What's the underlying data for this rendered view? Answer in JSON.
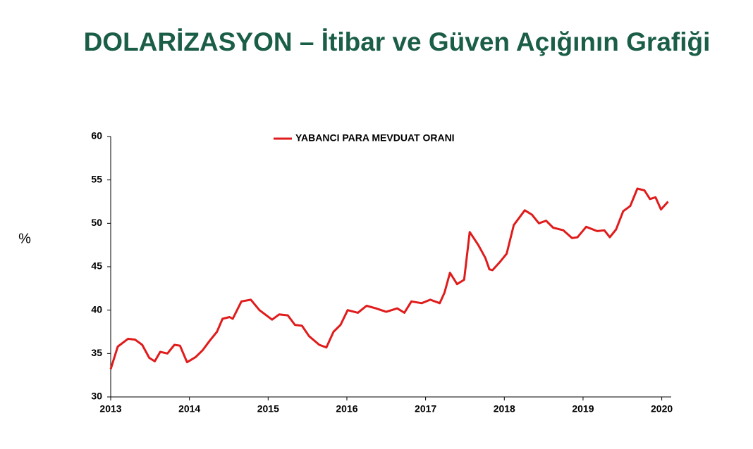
{
  "chart_data": {
    "type": "line",
    "title": "DOLARİZASYON – İtibar ve Güven Açığının Grafiği",
    "y_label": "%",
    "x": [
      2013.0,
      2013.09,
      2013.22,
      2013.31,
      2013.4,
      2013.49,
      2013.56,
      2013.63,
      2013.72,
      2013.81,
      2013.88,
      2013.97,
      2014.08,
      2014.17,
      2014.26,
      2014.35,
      2014.42,
      2014.51,
      2014.55,
      2014.66,
      2014.78,
      2014.89,
      2015.05,
      2015.14,
      2015.25,
      2015.34,
      2015.43,
      2015.52,
      2015.65,
      2015.74,
      2015.83,
      2015.92,
      2016.01,
      2016.14,
      2016.25,
      2016.37,
      2016.5,
      2016.64,
      2016.73,
      2016.82,
      2016.95,
      2017.06,
      2017.18,
      2017.24,
      2017.31,
      2017.4,
      2017.49,
      2017.56,
      2017.67,
      2017.76,
      2017.81,
      2017.85,
      2017.94,
      2018.03,
      2018.12,
      2018.26,
      2018.35,
      2018.44,
      2018.53,
      2018.62,
      2018.75,
      2018.86,
      2018.93,
      2019.04,
      2019.18,
      2019.27,
      2019.34,
      2019.42,
      2019.51,
      2019.6,
      2019.69,
      2019.78,
      2019.85,
      2019.92,
      2019.99,
      2020.08
    ],
    "series": [
      {
        "name": "YABANCI PARA MEVDUAT ORANI",
        "color": "#e01b1b",
        "values": [
          33.2,
          35.8,
          36.7,
          36.6,
          36,
          34.5,
          34.1,
          35.2,
          35,
          36,
          35.9,
          34,
          34.6,
          35.4,
          36.5,
          37.5,
          39,
          39.2,
          39,
          41,
          41.2,
          40,
          38.9,
          39.5,
          39.4,
          38.3,
          38.2,
          37,
          36,
          35.7,
          37.5,
          38.3,
          40,
          39.7,
          40.5,
          40.2,
          39.8,
          40.2,
          39.7,
          41,
          40.8,
          41.2,
          40.8,
          42,
          44.3,
          43,
          43.5,
          49,
          47.5,
          46,
          44.7,
          44.6,
          45.5,
          46.5,
          49.8,
          51.5,
          51,
          50,
          50.3,
          49.5,
          49.2,
          48.3,
          48.4,
          49.6,
          49.1,
          49.2,
          48.4,
          49.3,
          51.4,
          52,
          54,
          53.8,
          52.8,
          53,
          51.6,
          52.5
        ]
      }
    ],
    "xlim": [
      2013,
      2020.12
    ],
    "xticks": [
      2013,
      2014,
      2015,
      2016,
      2017,
      2018,
      2019,
      2020
    ],
    "ylim": [
      30,
      60
    ],
    "yticks": [
      30,
      35,
      40,
      45,
      50,
      55,
      60
    ],
    "grid": false
  }
}
